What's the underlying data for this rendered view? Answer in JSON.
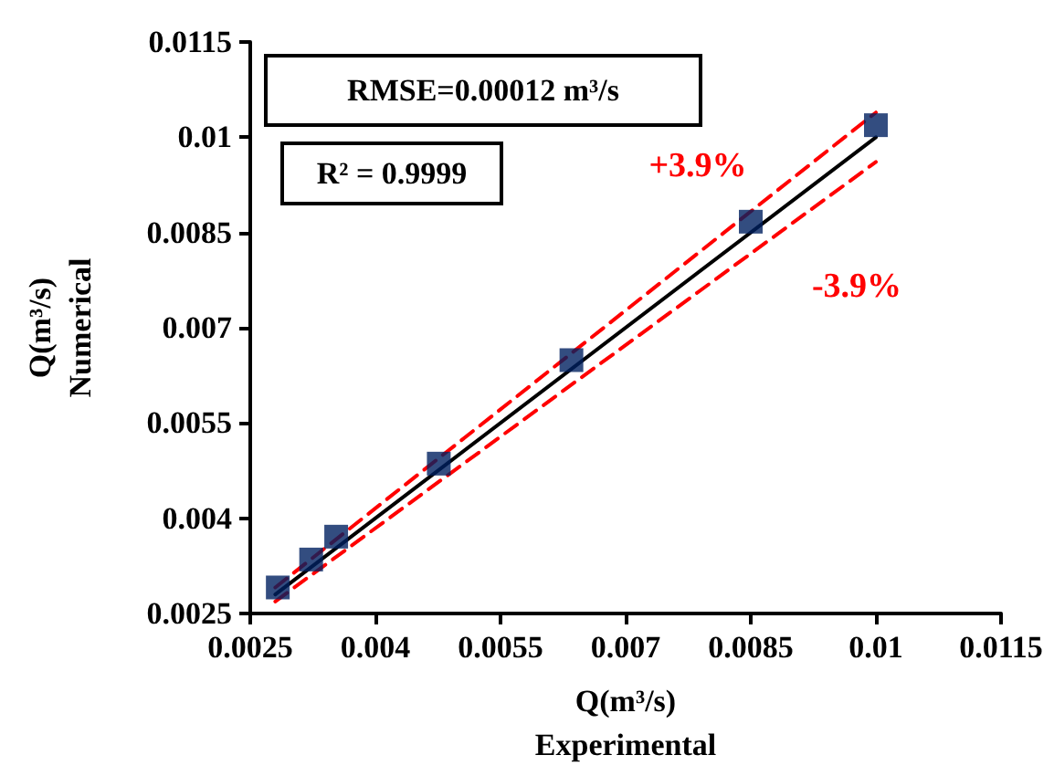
{
  "chart_data": {
    "type": "scatter",
    "xlabel": "Q(m³/s)\nExperimental",
    "ylabel": "Q(m³/s)\nNumerical",
    "xlim": [
      0.0025,
      0.0115
    ],
    "xticks": [
      0.0025,
      0.004,
      0.0055,
      0.007,
      0.0085,
      0.01,
      0.0115
    ],
    "ylim": [
      0.0025,
      0.0115
    ],
    "yticks": [
      0.0025,
      0.004,
      0.0055,
      0.007,
      0.0085,
      0.01,
      0.0115
    ],
    "grid": false,
    "marker": "square",
    "series": [
      {
        "type": "line",
        "color": "#000000",
        "marker": "none",
        "line_style": "solid",
        "x": [
          0.0028,
          0.01
        ],
        "values": [
          0.0028,
          0.01
        ]
      },
      {
        "type": "line",
        "color": "#ff0000",
        "marker": "none",
        "line_style": "dashed",
        "x": [
          0.0028,
          0.01
        ],
        "values": [
          0.00291,
          0.01039
        ]
      },
      {
        "type": "line",
        "color": "#ff0000",
        "marker": "none",
        "line_style": "dashed",
        "x": [
          0.0028,
          0.01
        ],
        "values": [
          0.00269,
          0.00961
        ]
      },
      {
        "color": "#002060",
        "x": [
          0.00283,
          0.00323,
          0.00353,
          0.00476,
          0.00635,
          0.0085,
          0.01
        ],
        "values": [
          0.00291,
          0.00335,
          0.00371,
          0.00486,
          0.00649,
          0.00867,
          0.01019
        ]
      }
    ],
    "annotations": [
      "RMSE=0.00012 m³/s",
      "R² = 0.9999",
      "+3.9%",
      "-3.9%"
    ]
  }
}
